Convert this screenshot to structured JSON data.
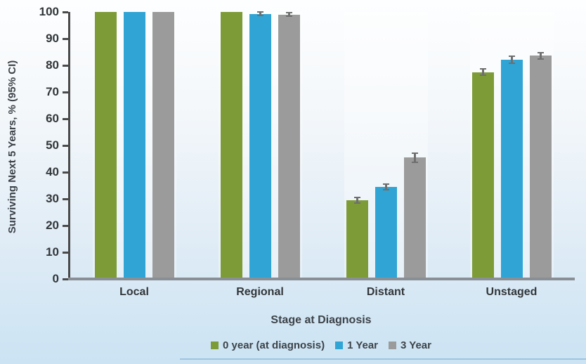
{
  "figure": {
    "kind": "grouped-bar-chart-with-error-bars"
  },
  "chart_data": {
    "type": "bar",
    "title": "",
    "categories": [
      "Local",
      "Regional",
      "Distant",
      "Unstaged"
    ],
    "series": [
      {
        "name": "0 year (at diagnosis)",
        "color": "#7d9b37",
        "values": [
          100,
          100,
          29.5,
          77.5
        ],
        "ci_half_width": [
          0,
          0,
          1.0,
          1.3
        ]
      },
      {
        "name": "1 Year",
        "color": "#30a4d4",
        "values": [
          100,
          99.3,
          34.5,
          82.1
        ],
        "ci_half_width": [
          0,
          0.6,
          1.0,
          1.2
        ]
      },
      {
        "name": "3 Year",
        "color": "#9b9b9b",
        "values": [
          100,
          99.0,
          45.4,
          83.6
        ],
        "ci_half_width": [
          0,
          0.7,
          1.6,
          1.2
        ]
      }
    ],
    "xlabel": "Stage at Diagnosis",
    "ylabel": "Surviving Next 5 Years, % (95% CI)",
    "ylim": [
      0,
      100
    ],
    "yticks": [
      0,
      10,
      20,
      30,
      40,
      50,
      60,
      70,
      80,
      90,
      100
    ],
    "grid": false,
    "legend_position": "bottom",
    "error_bar_color": "#6f6f6f",
    "axis_color": "#4a4a4a",
    "baseline_color": "#898f94",
    "text_color": "#323639",
    "background_top": "#fdfeff",
    "background_bottom": "#cbe3f3"
  }
}
